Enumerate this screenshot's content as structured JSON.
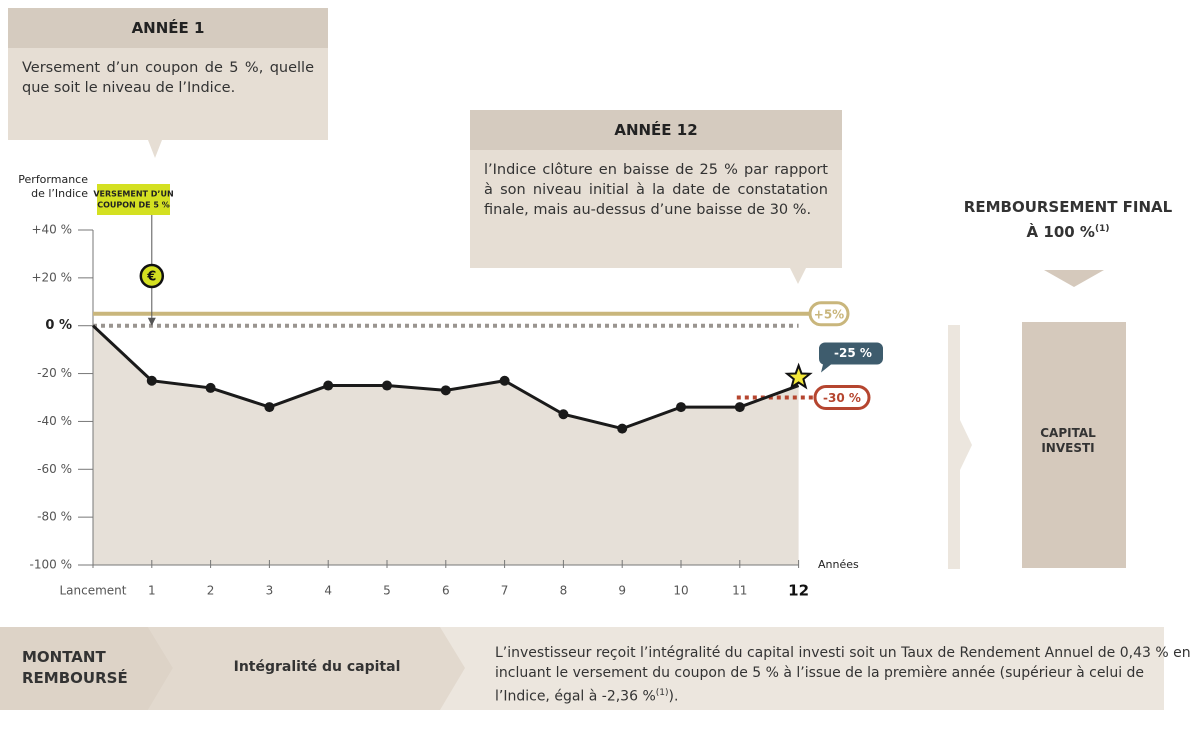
{
  "chart_data": {
    "type": "line",
    "y_label": [
      "Performance",
      "de l’Indice"
    ],
    "x_label": "Années",
    "categories": [
      "Lancement",
      "1",
      "2",
      "3",
      "4",
      "5",
      "6",
      "7",
      "8",
      "9",
      "10",
      "11",
      "12"
    ],
    "series": [
      {
        "name": "Indice",
        "color": "#1a1a1a",
        "values": [
          0,
          -23,
          -26,
          -34,
          -25,
          -25,
          -27,
          -23,
          -37,
          -43,
          -34,
          -34,
          -25
        ],
        "value_labels": [
          null,
          null,
          null,
          null,
          null,
          null,
          null,
          null,
          null,
          null,
          null,
          null,
          "-25 %"
        ]
      }
    ],
    "ylim": [
      -100,
      40
    ],
    "yticks": [
      {
        "value": -100,
        "label": "-100 %"
      },
      {
        "value": -80,
        "label": "-80 %"
      },
      {
        "value": -60,
        "label": "-60 %"
      },
      {
        "value": -40,
        "label": "-40 %"
      },
      {
        "value": -20,
        "label": "-20 %"
      },
      {
        "value": 0,
        "label": "0 %"
      },
      {
        "value": 20,
        "label": "+20 %"
      },
      {
        "value": 40,
        "label": "+40 %"
      }
    ],
    "reference_lines": [
      {
        "value": 5,
        "label": "+5%",
        "color": "#c9b67c",
        "style": "solid"
      },
      {
        "value": 0,
        "color": "#9a9590",
        "style": "dotted"
      },
      {
        "value": -30,
        "label": "-30 %",
        "color": "#b5452f",
        "style": "dotted-short"
      }
    ],
    "coupon_label": [
      "VERSEMENT D’UN",
      "COUPON DE 5 %"
    ],
    "coupon_symbol": "€"
  },
  "callouts": [
    {
      "title": "ANNÉE 1",
      "text": "Versement d’un coupon de 5 %, quelle que soit le niveau de l’Indice."
    },
    {
      "title": "ANNÉE 12",
      "text": "l’Indice clôture en baisse de 25 % par rapport à son niveau initial à la date de constatation finale, mais au-dessus d’une baisse de 30 %."
    }
  ],
  "panel": {
    "title": "REMBOURSEMENT FINAL À 100 %",
    "note_ref": "(1)",
    "box": "CAPITAL INVESTI"
  },
  "footer": {
    "label": "MONTANT REMBOURSÉ",
    "step": "Intégralité du capital",
    "text": "L’investisseur reçoit l’intégralité du capital investi soit un Taux de Rendement Annuel de 0,43 % en incluant le versement du coupon de 5 % à l’issue de la première année (supérieur à celui de l’Indice, égal à -2,36 %",
    "note_ref": "(1)",
    "text_end": ")."
  }
}
